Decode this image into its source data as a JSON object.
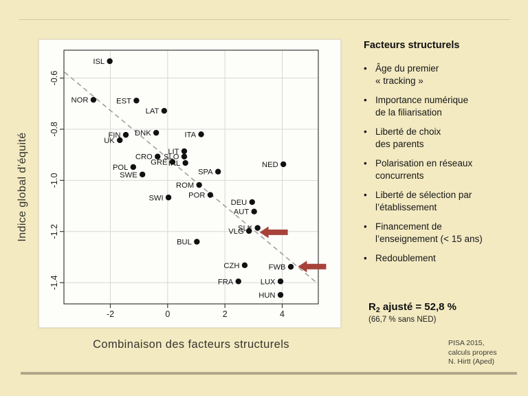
{
  "slide": {
    "background_color": "#f3eac2",
    "top_rule_color": "#d2c79b",
    "bottom_rule_color": "#b1a88b"
  },
  "chart": {
    "xlabel": "Combinaison des facteurs structurels",
    "ylabel": "Indice global d’équité"
  },
  "chart_data": {
    "type": "scatter",
    "title": "",
    "xlabel": "Combinaison des facteurs structurels",
    "ylabel": "Indice global d’équité",
    "xlim": [
      -3.62,
      5.26
    ],
    "ylim": [
      -1.483,
      -0.491
    ],
    "xticks": [
      -2,
      0,
      2,
      4
    ],
    "xtick_labels": [
      "-2",
      "0",
      "2",
      "4"
    ],
    "yticks": [
      -0.6,
      -0.8,
      -1.0,
      -1.2,
      -1.4
    ],
    "ytick_labels": [
      "-0.6",
      "-0.8",
      "-1.0",
      "-1.2",
      "-1.4"
    ],
    "grid": true,
    "legend": "none",
    "point_color": "#111111",
    "grid_color": "#d7d7d7",
    "frame_color": "#3a3a3a",
    "trend_color": "#9b9b9b",
    "arrow_color": "#a7423b",
    "points": [
      {
        "label": "ISL",
        "x": -2.02,
        "y": -0.534
      },
      {
        "label": "NOR",
        "x": -2.59,
        "y": -0.685
      },
      {
        "label": "EST",
        "x": -1.09,
        "y": -0.688
      },
      {
        "label": "LAT",
        "x": -0.12,
        "y": -0.728
      },
      {
        "label": "DNK",
        "x": -0.4,
        "y": -0.814
      },
      {
        "label": "ITA",
        "x": 1.17,
        "y": -0.82
      },
      {
        "label": "FIN",
        "x": -1.46,
        "y": -0.822
      },
      {
        "label": "UK",
        "x": -1.67,
        "y": -0.843
      },
      {
        "label": "LIT",
        "x": 0.58,
        "y": -0.886
      },
      {
        "label": "SLO",
        "x": 0.58,
        "y": -0.907
      },
      {
        "label": "CRO",
        "x": -0.35,
        "y": -0.907
      },
      {
        "label": "GRE",
        "x": 0.17,
        "y": -0.928
      },
      {
        "label": "IRL",
        "x": 0.62,
        "y": -0.932
      },
      {
        "label": "NED",
        "x": 4.04,
        "y": -0.937
      },
      {
        "label": "POL",
        "x": -1.2,
        "y": -0.948
      },
      {
        "label": "SPA",
        "x": 1.76,
        "y": -0.966
      },
      {
        "label": "SWE",
        "x": -0.88,
        "y": -0.977
      },
      {
        "label": "ROM",
        "x": 1.1,
        "y": -1.018
      },
      {
        "label": "POR",
        "x": 1.49,
        "y": -1.057
      },
      {
        "label": "SWI",
        "x": 0.03,
        "y": -1.067
      },
      {
        "label": "DEU",
        "x": 2.95,
        "y": -1.085
      },
      {
        "label": "AUT",
        "x": 3.02,
        "y": -1.122
      },
      {
        "label": "SLK",
        "x": 3.14,
        "y": -1.186
      },
      {
        "label": "VLG",
        "x": 2.84,
        "y": -1.198
      },
      {
        "label": "BUL",
        "x": 1.02,
        "y": -1.24
      },
      {
        "label": "CZH",
        "x": 2.69,
        "y": -1.332
      },
      {
        "label": "FWB",
        "x": 4.3,
        "y": -1.338
      },
      {
        "label": "FRA",
        "x": 2.47,
        "y": -1.395
      },
      {
        "label": "LUX",
        "x": 3.94,
        "y": -1.395
      },
      {
        "label": "HUN",
        "x": 3.94,
        "y": -1.448
      }
    ],
    "trend_line": {
      "style": "dashed",
      "x1": -3.6,
      "y1": -0.577,
      "x2": 5.2,
      "y2": -1.4
    },
    "arrows": [
      {
        "x": 3.21,
        "y": -1.203,
        "direction": "left",
        "points_at": "VLG / SLK"
      },
      {
        "x": 4.55,
        "y": -1.337,
        "direction": "left",
        "points_at": "FWB"
      }
    ]
  },
  "panel": {
    "heading": "Facteurs structurels",
    "bullet_char": "•",
    "items": [
      "Âge du premier\n« tracking »",
      "Importance numérique\nde la filiarisation",
      "Liberté de choix\ndes parents",
      "Polarisation en réseaux\nconcurrents",
      "Liberté de sélection par\nl’établissement",
      "Financement de\nl’enseignement (< 15 ans)",
      "Redoublement"
    ]
  },
  "stats": {
    "r2_prefix": "R",
    "r2_sub": "2",
    "r2_suffix": " ajusté = 52,8 %",
    "r2_note": "(66,7 % sans NED)"
  },
  "footer": {
    "source": "PISA 2015,\ncalculs propres\nN. Hirtt (Aped)"
  }
}
